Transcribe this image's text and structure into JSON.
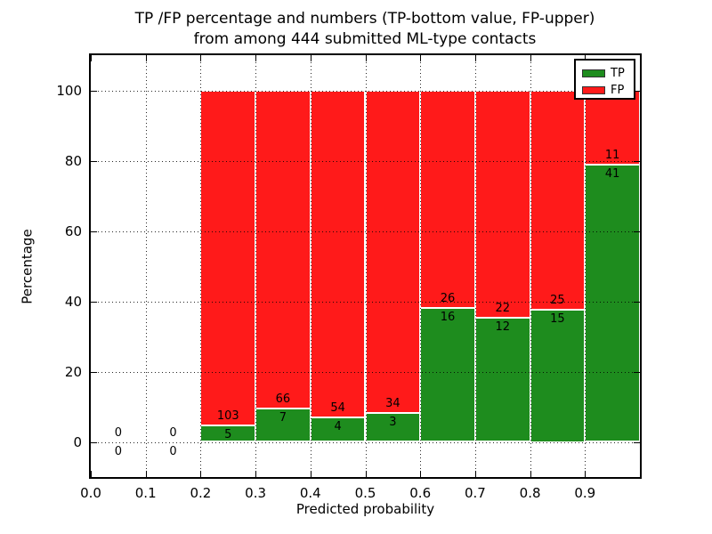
{
  "chart_data": {
    "type": "bar",
    "stacked": true,
    "normalized_to": 100,
    "title_line1": "TP /FP percentage and numbers (TP-bottom value, FP-upper)",
    "title_line2": "from among 444 submitted ML-type contacts",
    "xlabel": "Predicted probability",
    "ylabel": "Percentage",
    "total_contacts": 444,
    "xlim": [
      0.0,
      1.0
    ],
    "ylim": [
      -10,
      110
    ],
    "grid": "dotted, drawn above bars",
    "legend_position": "upper right",
    "x_ticks": [
      {
        "value": 0.0,
        "label": "0.0"
      },
      {
        "value": 0.1,
        "label": "0.1"
      },
      {
        "value": 0.2,
        "label": "0.2"
      },
      {
        "value": 0.3,
        "label": "0.3"
      },
      {
        "value": 0.4,
        "label": "0.4"
      },
      {
        "value": 0.5,
        "label": "0.5"
      },
      {
        "value": 0.6,
        "label": "0.6"
      },
      {
        "value": 0.7,
        "label": "0.7"
      },
      {
        "value": 0.8,
        "label": "0.8"
      },
      {
        "value": 0.9,
        "label": "0.9"
      }
    ],
    "y_ticks": [
      {
        "value": 0,
        "label": "0"
      },
      {
        "value": 20,
        "label": "20"
      },
      {
        "value": 40,
        "label": "40"
      },
      {
        "value": 60,
        "label": "60"
      },
      {
        "value": 80,
        "label": "80"
      },
      {
        "value": 100,
        "label": "100"
      }
    ],
    "legend": [
      {
        "label": "TP",
        "color": "#1e8c1e"
      },
      {
        "label": "FP",
        "color": "#ff1a1a"
      }
    ],
    "bins": [
      {
        "range": [
          0.0,
          0.1
        ],
        "tp": 0,
        "fp": 0
      },
      {
        "range": [
          0.1,
          0.2
        ],
        "tp": 0,
        "fp": 0
      },
      {
        "range": [
          0.2,
          0.3
        ],
        "tp": 5,
        "fp": 103
      },
      {
        "range": [
          0.3,
          0.4
        ],
        "tp": 7,
        "fp": 66
      },
      {
        "range": [
          0.4,
          0.5
        ],
        "tp": 4,
        "fp": 54
      },
      {
        "range": [
          0.5,
          0.6
        ],
        "tp": 3,
        "fp": 34
      },
      {
        "range": [
          0.6,
          0.7
        ],
        "tp": 16,
        "fp": 26
      },
      {
        "range": [
          0.7,
          0.8
        ],
        "tp": 12,
        "fp": 22
      },
      {
        "range": [
          0.8,
          0.9
        ],
        "tp": 15,
        "fp": 25
      },
      {
        "range": [
          0.9,
          1.0
        ],
        "tp": 41,
        "fp": 11
      }
    ]
  }
}
